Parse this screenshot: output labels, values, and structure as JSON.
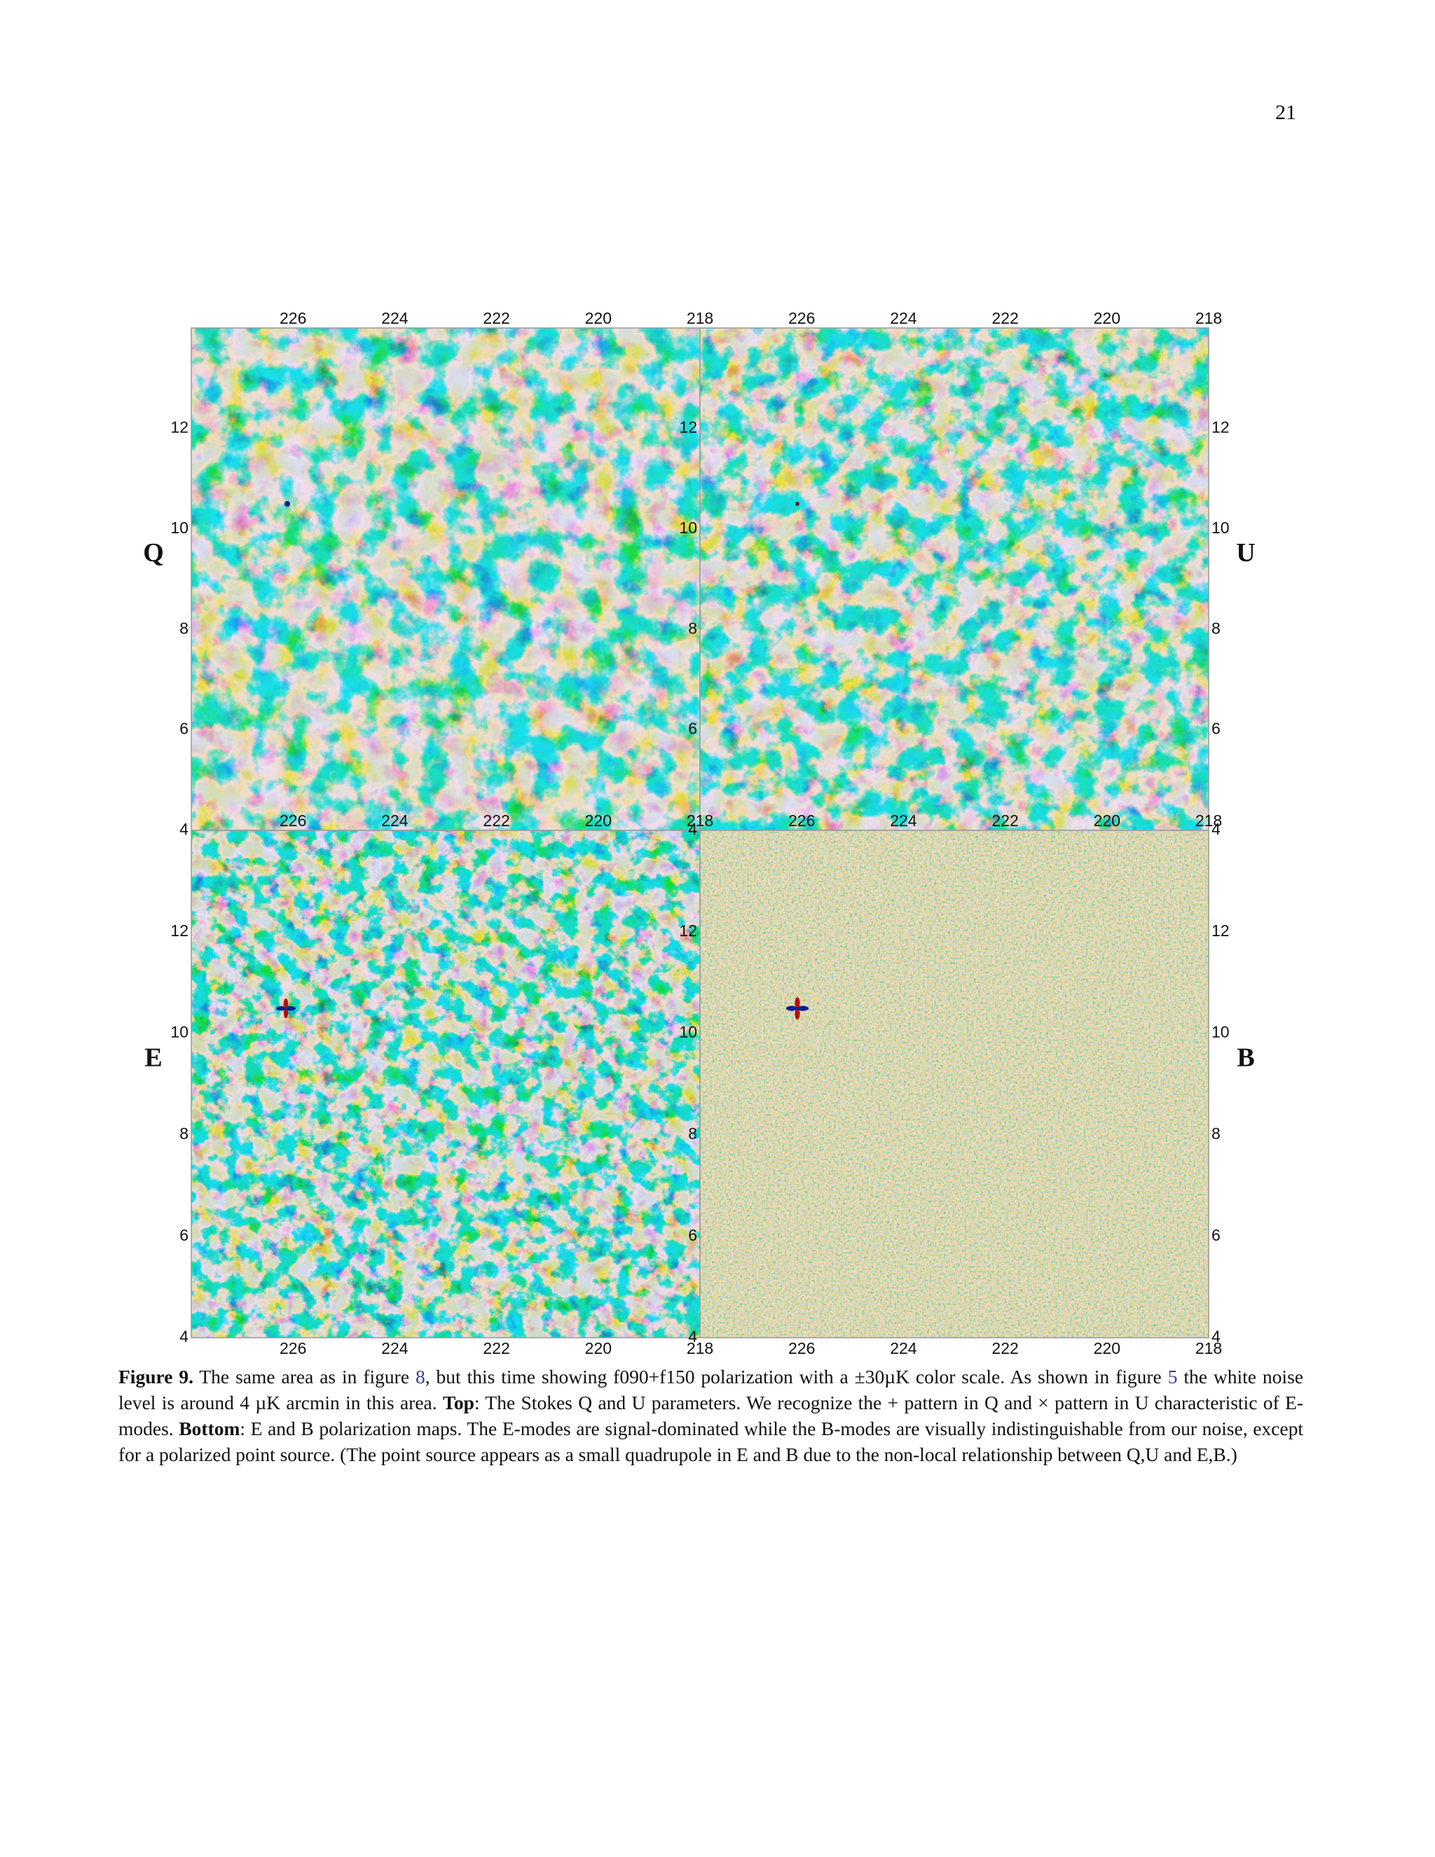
{
  "page_number": "21",
  "figure": {
    "panels": [
      {
        "label": "Q"
      },
      {
        "label": "U"
      },
      {
        "label": "E"
      },
      {
        "label": "B"
      }
    ],
    "x_ticks": [
      226,
      224,
      222,
      220,
      218
    ],
    "y_ticks": [
      12,
      10,
      8,
      6,
      4
    ]
  },
  "caption": {
    "runs": [
      {
        "text": "Figure 9.",
        "bold": true
      },
      {
        "text": " The same area as in figure "
      },
      {
        "text": "8",
        "link": true
      },
      {
        "text": ", but this time showing f090+f150 polarization with a ±30µK color scale. As shown in figure "
      },
      {
        "text": "5",
        "link": true
      },
      {
        "text": " the white noise level is around 4 µK arcmin in this area. "
      },
      {
        "text": "Top",
        "bold": true
      },
      {
        "text": ": The Stokes Q and U parameters. We recognize the + pattern in Q and × pattern in U characteristic of E-modes. "
      },
      {
        "text": "Bottom",
        "bold": true
      },
      {
        "text": ": E and B polarization maps. The E-modes are signal-dominated while the B-modes are visually indistinguishable from our noise, except for a polarized point source. (The point source appears as a small quadrupole in E and B due to the non-local relationship between Q,U and E,B.)"
      }
    ]
  }
}
